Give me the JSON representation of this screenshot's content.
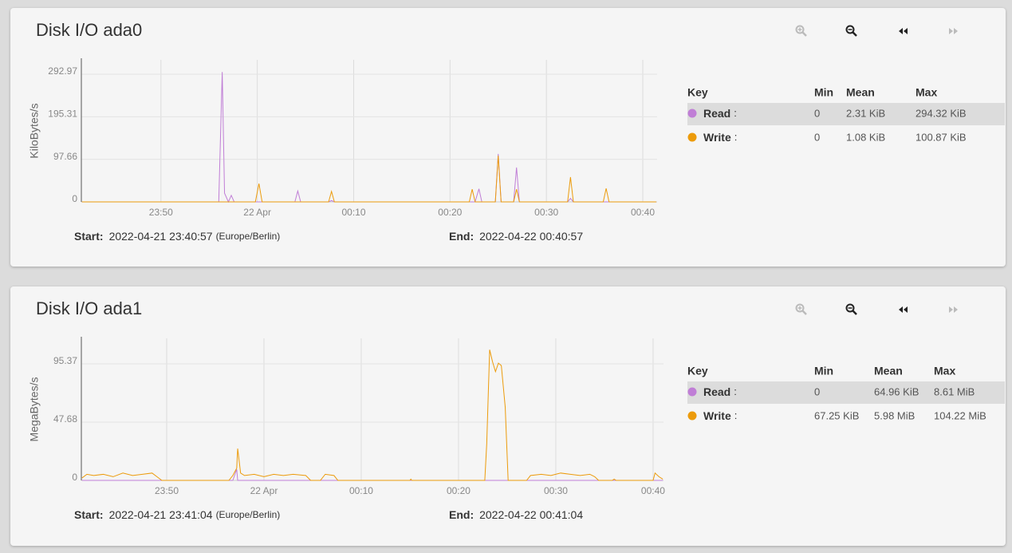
{
  "chart_data": [
    {
      "type": "line",
      "title": "Disk I/O ada0",
      "y_label": "KiloBytes/s",
      "grid": true,
      "x": [
        -18.2,
        -4.0,
        -3.64,
        -3.4,
        -3.0,
        -2.7,
        -2.4,
        -0.2,
        0.17,
        0.5,
        3.9,
        4.2,
        4.5,
        7.4,
        7.7,
        8.0,
        22.0,
        22.3,
        22.6,
        23.0,
        23.3,
        24.7,
        25.0,
        25.3,
        26.6,
        26.9,
        27.2,
        32.2,
        32.5,
        32.8,
        35.9,
        36.2,
        36.5,
        41.4
      ],
      "xlim": [
        -18.26,
        41.49
      ],
      "xticks": [
        {
          "value": -10,
          "label": "23:50"
        },
        {
          "value": 0,
          "label": "22 Apr"
        },
        {
          "value": 10,
          "label": "00:10"
        },
        {
          "value": 20,
          "label": "00:20"
        },
        {
          "value": 30,
          "label": "00:30"
        },
        {
          "value": 40,
          "label": "00:40"
        }
      ],
      "ylim": [
        0,
        326
      ],
      "yticks": [
        0,
        97.66,
        195.31,
        292.97
      ],
      "series": [
        {
          "name": "Read",
          "color": "#c07ed6",
          "values": [
            0,
            0,
            298,
            20,
            0,
            15,
            0,
            0,
            0,
            0,
            0,
            25,
            0,
            0,
            3,
            0,
            0,
            0,
            0,
            30,
            0,
            0,
            110,
            0,
            0,
            79,
            0,
            0,
            8,
            0,
            0,
            0,
            0,
            0
          ]
        },
        {
          "name": "Write",
          "color": "#ec9b0b",
          "values": [
            0,
            0,
            0,
            0,
            0,
            0,
            0,
            0,
            42,
            0,
            0,
            0,
            0,
            0,
            24,
            0,
            0,
            29,
            0,
            0,
            0,
            0,
            106,
            0,
            0,
            29,
            0,
            0,
            57,
            0,
            0,
            31,
            0,
            0
          ]
        }
      ]
    },
    {
      "type": "line",
      "title": "Disk I/O ada1",
      "y_label": "MegaBytes/s",
      "grid": true,
      "x": [
        -18.7,
        -18.2,
        -17.5,
        -16.5,
        -15.5,
        -14.5,
        -13.5,
        -12.5,
        -11.5,
        -11.0,
        -10.5,
        -3.6,
        -3.2,
        -2.8,
        -2.7,
        -2.4,
        -2.0,
        -1.0,
        0.0,
        1.0,
        2.0,
        3.0,
        4.3,
        4.8,
        5.8,
        6.3,
        7.2,
        7.6,
        15.0,
        15.1,
        15.2,
        22.7,
        22.9,
        23.2,
        23.5,
        23.8,
        24.1,
        24.4,
        24.8,
        25.1,
        27.0,
        27.4,
        28.5,
        29.5,
        30.5,
        31.5,
        32.5,
        33.5,
        34.0,
        34.4,
        35.8,
        36.0,
        36.2,
        40.0,
        40.2,
        40.6,
        41.0
      ],
      "xlim": [
        -18.77,
        41.07
      ],
      "xticks": [
        {
          "value": -10,
          "label": "23:50"
        },
        {
          "value": 0,
          "label": "22 Apr"
        },
        {
          "value": 10,
          "label": "00:10"
        },
        {
          "value": 20,
          "label": "00:20"
        },
        {
          "value": 30,
          "label": "00:30"
        },
        {
          "value": 40,
          "label": "00:40"
        }
      ],
      "ylim": [
        0,
        116.3
      ],
      "yticks": [
        0,
        47.68,
        95.37
      ],
      "series": [
        {
          "name": "Read",
          "color": "#c07ed6",
          "values": [
            0,
            0,
            0,
            0,
            0,
            0,
            0,
            0,
            0,
            0,
            0,
            0,
            0,
            9,
            0,
            0,
            0,
            0,
            0,
            0,
            0,
            0,
            0,
            0,
            0,
            0,
            0,
            0,
            0,
            0,
            0,
            0,
            0,
            0,
            0,
            0,
            0,
            0,
            0,
            0,
            0,
            0,
            0,
            0,
            0,
            0,
            0,
            0,
            0,
            0,
            0,
            0,
            0,
            0,
            0,
            0,
            0
          ]
        },
        {
          "name": "Write",
          "color": "#ec9b0b",
          "values": [
            2,
            5,
            4,
            5,
            3,
            6,
            4,
            5,
            6,
            3,
            0,
            0,
            4,
            10,
            26,
            6,
            4,
            5,
            3,
            5,
            4,
            5,
            4,
            0,
            0,
            5,
            4,
            0,
            0,
            1,
            0,
            0,
            30,
            107,
            97,
            89,
            96,
            94,
            60,
            0,
            0,
            4,
            5,
            4,
            6,
            5,
            4,
            5,
            3,
            0,
            0,
            1,
            0,
            0,
            6,
            3,
            1
          ]
        }
      ]
    }
  ],
  "panels": [
    {
      "legend": {
        "headers": [
          "Key",
          "Min",
          "Mean",
          "Max"
        ],
        "rows": [
          {
            "separator": ":",
            "min": "0",
            "mean": "2.31 KiB",
            "max": "294.32 KiB"
          },
          {
            "separator": ":",
            "min": "0",
            "mean": "1.08 KiB",
            "max": "100.87 KiB"
          }
        ]
      },
      "start_label": "Start:",
      "start": "2022-04-21 23:40:57",
      "timezone": "(Europe/Berlin)",
      "end_label": "End:",
      "end": "2022-04-22 00:40:57"
    },
    {
      "legend": {
        "headers": [
          "Key",
          "Min",
          "Mean",
          "Max"
        ],
        "rows": [
          {
            "separator": ":",
            "min": "0",
            "mean": "64.96 KiB",
            "max": "8.61 MiB"
          },
          {
            "separator": ":",
            "min": "67.25 KiB",
            "max": "104.22 MiB",
            "mean": "5.98 MiB"
          }
        ]
      },
      "start_label": "Start:",
      "start": "2022-04-21 23:41:04",
      "timezone": "(Europe/Berlin)",
      "end_label": "End:",
      "end": "2022-04-22 00:41:04"
    }
  ]
}
